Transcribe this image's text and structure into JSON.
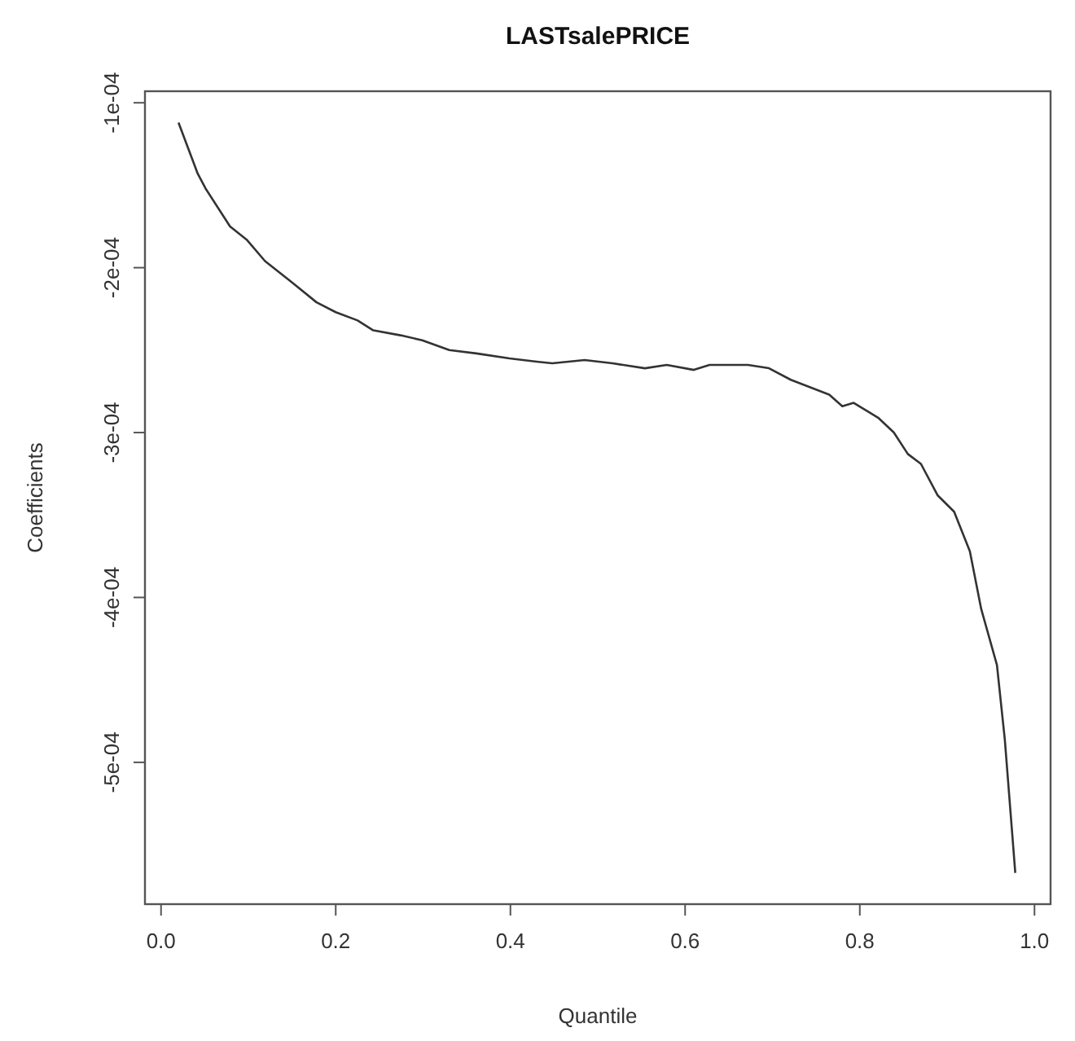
{
  "chart_data": {
    "type": "line",
    "title": "LASTsalePRICE",
    "xlabel": "Quantile",
    "ylabel": "Coefficients",
    "xlim": [
      -0.0184,
      1.0184
    ],
    "ylim": [
      -0.000586,
      -9.3e-05
    ],
    "xticks": [
      {
        "value": 0,
        "label": "0.0"
      },
      0.2,
      0.4,
      0.6,
      0.8,
      {
        "value": 1,
        "label": "1.0"
      }
    ],
    "yticks": [
      {
        "value": -0.0005,
        "label": "-5e-04"
      },
      {
        "value": -0.0004,
        "label": "-4e-04"
      },
      {
        "value": -0.0003,
        "label": "-3e-04"
      },
      {
        "value": -0.0002,
        "label": "-2e-04"
      },
      {
        "value": -0.0001,
        "label": "-1e-04"
      }
    ],
    "grid": false,
    "series": [
      {
        "color": "#333333",
        "x": [
          0.02,
          0.042,
          0.051,
          0.079,
          0.098,
          0.119,
          0.15,
          0.178,
          0.2,
          0.225,
          0.243,
          0.274,
          0.299,
          0.33,
          0.361,
          0.399,
          0.43,
          0.448,
          0.485,
          0.517,
          0.554,
          0.579,
          0.61,
          0.628,
          0.672,
          0.696,
          0.721,
          0.765,
          0.78,
          0.793,
          0.821,
          0.839,
          0.855,
          0.87,
          0.889,
          0.908,
          0.926,
          0.939,
          0.957,
          0.966,
          0.978
        ],
        "values": [
          -0.000112,
          -0.000143,
          -0.000152,
          -0.000175,
          -0.000183,
          -0.000196,
          -0.000209,
          -0.000221,
          -0.000227,
          -0.000232,
          -0.000238,
          -0.000241,
          -0.000244,
          -0.00025,
          -0.000252,
          -0.000255,
          -0.000257,
          -0.000258,
          -0.000256,
          -0.000258,
          -0.000261,
          -0.000259,
          -0.000262,
          -0.000259,
          -0.000259,
          -0.000261,
          -0.000268,
          -0.000277,
          -0.000284,
          -0.000282,
          -0.000291,
          -0.0003,
          -0.000313,
          -0.000319,
          -0.000338,
          -0.000348,
          -0.000372,
          -0.000407,
          -0.000441,
          -0.000486,
          -0.000567
        ]
      }
    ]
  }
}
